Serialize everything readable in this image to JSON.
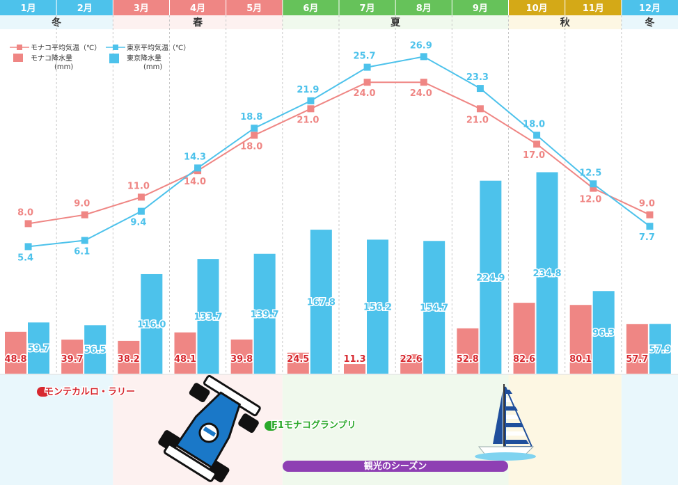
{
  "chart_data": {
    "type": "bar+line",
    "months": [
      "1月",
      "2月",
      "3月",
      "4月",
      "5月",
      "6月",
      "7月",
      "8月",
      "9月",
      "10月",
      "11月",
      "12月"
    ],
    "month_colors": [
      "#4dc2eb",
      "#4dc2eb",
      "#ef8684",
      "#ef8684",
      "#ef8684",
      "#66c25a",
      "#66c25a",
      "#66c25a",
      "#66c25a",
      "#d4a917",
      "#d4a917",
      "#4dc2eb"
    ],
    "seasons": [
      {
        "label": "冬",
        "start": 0,
        "end": 2,
        "bg": "#e9f7fc"
      },
      {
        "label": "春",
        "start": 2,
        "end": 5,
        "bg": "#fdf1f0"
      },
      {
        "label": "夏",
        "start": 5,
        "end": 9,
        "bg": "#f0f9ed"
      },
      {
        "label": "秋",
        "start": 9,
        "end": 11,
        "bg": "#fdf7e3"
      },
      {
        "label": "冬",
        "start": 11,
        "end": 12,
        "bg": "#e9f7fc"
      }
    ],
    "legend": {
      "monaco_temp": "モナコ平均気温（℃）",
      "tokyo_temp": "東京平均気温（℃）",
      "monaco_rain": "モナコ降水量",
      "tokyo_rain": "東京降水量",
      "rain_unit": "(mm)"
    },
    "series": [
      {
        "name": "モナコ平均気温",
        "kind": "line",
        "color": "#ef8684",
        "values": [
          8.0,
          9.0,
          11.0,
          14.0,
          18.0,
          21.0,
          24.0,
          24.0,
          21.0,
          17.0,
          12.0,
          9.0
        ]
      },
      {
        "name": "東京平均気温",
        "kind": "line",
        "color": "#4dc2eb",
        "values": [
          5.4,
          6.1,
          9.4,
          14.3,
          18.8,
          21.9,
          25.7,
          26.9,
          23.3,
          18.0,
          12.5,
          7.7
        ]
      },
      {
        "name": "モナコ降水量",
        "kind": "bar",
        "color": "#ef8684",
        "values": [
          48.8,
          39.7,
          38.2,
          48.1,
          39.8,
          24.5,
          11.3,
          22.6,
          52.8,
          82.6,
          80.1,
          57.7
        ]
      },
      {
        "name": "東京降水量",
        "kind": "bar",
        "color": "#4dc2eb",
        "values": [
          59.7,
          56.5,
          116.0,
          133.7,
          139.7,
          167.8,
          156.2,
          154.7,
          224.9,
          234.8,
          96.3,
          57.9
        ]
      }
    ],
    "events": [
      {
        "label": "モンテカルロ・ラリー",
        "color": "#d7282f"
      },
      {
        "label": "F1モナコグランプリ",
        "color": "#2aa82a"
      },
      {
        "label": "観光のシーズン",
        "color": "#8e3fb3"
      }
    ]
  }
}
